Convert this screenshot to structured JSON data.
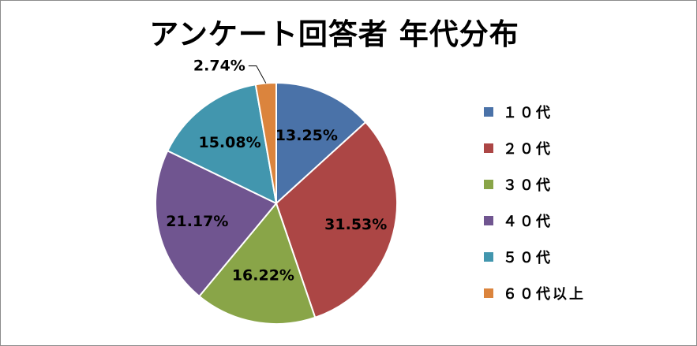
{
  "chart_data": {
    "type": "pie",
    "title": "アンケート回答者 年代分布",
    "categories": [
      "１０代",
      "２０代",
      "３０代",
      "４０代",
      "５０代",
      "６０代以上"
    ],
    "values": [
      13.25,
      31.53,
      16.22,
      21.17,
      15.08,
      2.74
    ],
    "data_labels": [
      "13.25%",
      "31.53%",
      "16.22%",
      "21.17%",
      "15.08%",
      "2.74%"
    ],
    "colors": [
      "#4a72a8",
      "#ac4645",
      "#89a548",
      "#705590",
      "#4296ae",
      "#db843d"
    ],
    "legend_position": "right",
    "start_angle": "12 o'clock, clockwise"
  }
}
